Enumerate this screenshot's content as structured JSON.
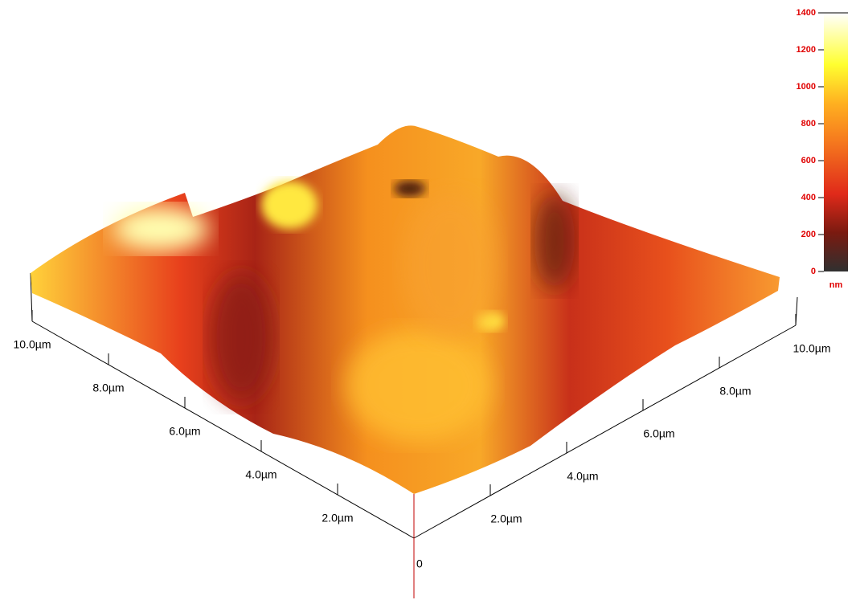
{
  "colorbar": {
    "ticks": [
      0,
      200,
      400,
      600,
      800,
      1000,
      1200,
      1400
    ],
    "unit": "nm"
  },
  "left_axis": {
    "labels": [
      "2.0µm",
      "4.0µm",
      "6.0µm",
      "8.0µm",
      "10.0µm"
    ]
  },
  "right_axis": {
    "labels": [
      "2.0µm",
      "4.0µm",
      "6.0µm",
      "8.0µm",
      "10.0µm"
    ]
  },
  "origin": "0"
}
